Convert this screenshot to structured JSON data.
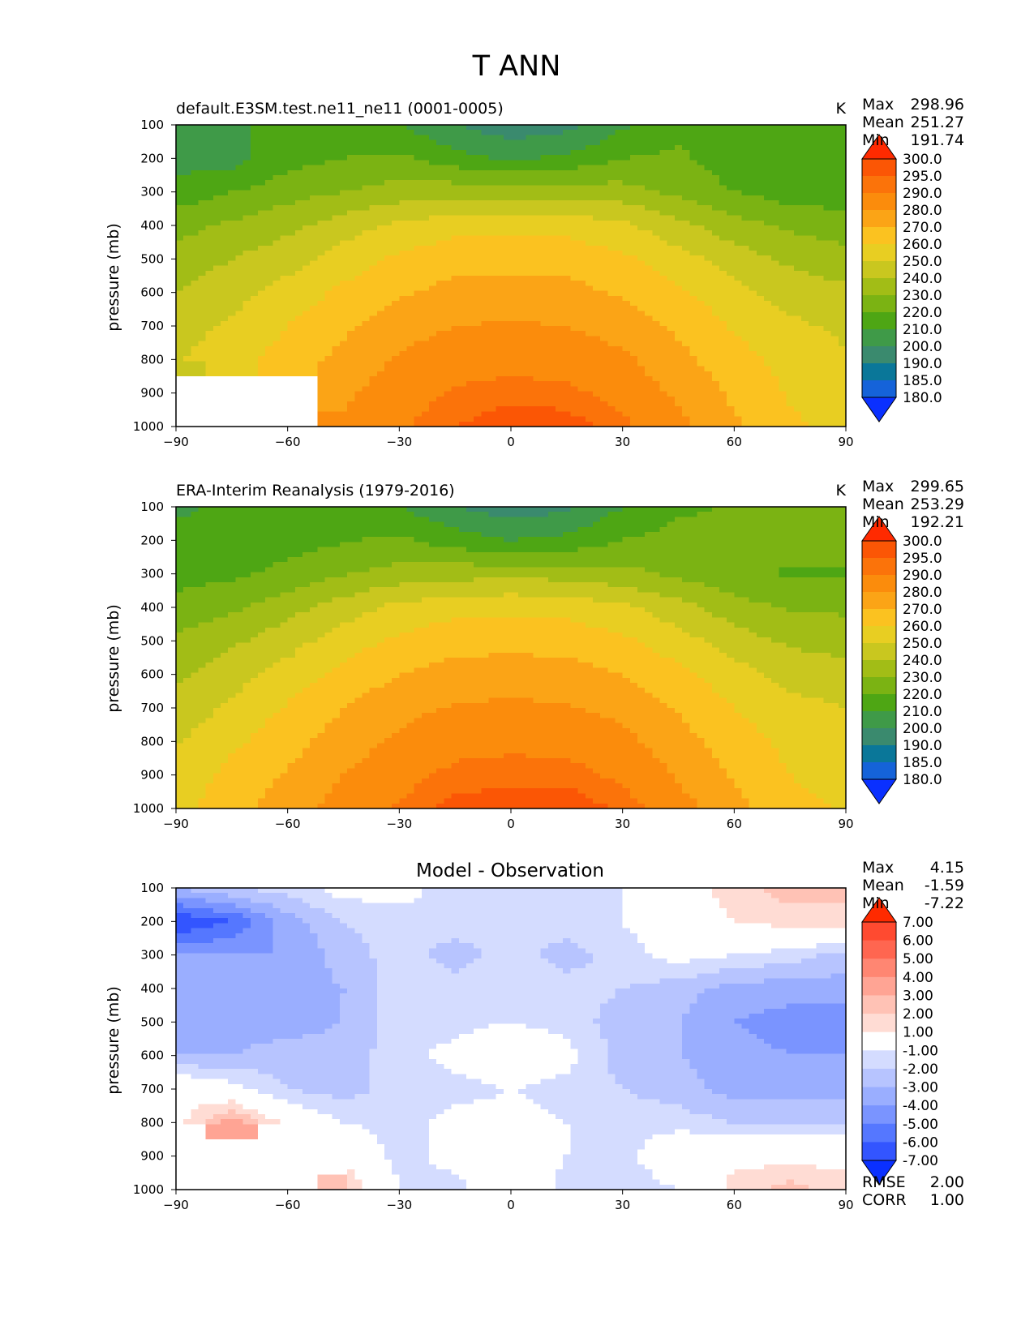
{
  "figure": {
    "title": "T ANN"
  },
  "colors": {
    "abs_levels": [
      "#0a30ff",
      "#1563d9",
      "#0a7799",
      "#3a8a6e",
      "#3f9a48",
      "#4ea614",
      "#7bb313",
      "#a2bd16",
      "#c9c71f",
      "#e8ce22",
      "#fbc220",
      "#fba416",
      "#fb8c0c",
      "#fb730a",
      "#fb5605",
      "#ff2a00"
    ],
    "diff_levels": [
      "#0a30ff",
      "#3355ff",
      "#5577ff",
      "#7a94ff",
      "#9aaeff",
      "#b7c4ff",
      "#d4dcff",
      "#ffffff",
      "#ffdcd4",
      "#ffc2b5",
      "#ffa494",
      "#ff8672",
      "#ff6650",
      "#ff4a30",
      "#ff2a00"
    ],
    "missing": "#ffffff"
  },
  "chart_data": [
    {
      "type": "heatmap",
      "id": "test",
      "title": "default.E3SM.test.ne11_ne11 (0001-0005)",
      "units": "K",
      "xlabel": "",
      "ylabel": "pressure (mb)",
      "xlim": [
        -90,
        90
      ],
      "ylim": [
        1000,
        100
      ],
      "xticks": [
        -90,
        -60,
        -30,
        0,
        30,
        60,
        90
      ],
      "xtick_labels": [
        "−90",
        "−60",
        "−30",
        "0",
        "30",
        "60",
        "90"
      ],
      "yticks": [
        100,
        200,
        300,
        400,
        500,
        600,
        700,
        800,
        900,
        1000
      ],
      "stats": [
        {
          "label": "Max",
          "value": "298.96"
        },
        {
          "label": "Mean",
          "value": "251.27"
        },
        {
          "label": "Min",
          "value": "191.74"
        }
      ],
      "colorbar": {
        "levels": [
          180.0,
          185.0,
          190.0,
          200.0,
          210.0,
          220.0,
          230.0,
          240.0,
          250.0,
          260.0,
          270.0,
          280.0,
          290.0,
          295.0,
          300.0
        ],
        "labels": [
          "180.0",
          "185.0",
          "190.0",
          "200.0",
          "210.0",
          "220.0",
          "230.0",
          "240.0",
          "250.0",
          "260.0",
          "270.0",
          "280.0",
          "290.0",
          "295.0",
          "300.0"
        ]
      },
      "field": {
        "lat": [
          -90,
          -75,
          -60,
          -45,
          -30,
          -15,
          0,
          15,
          30,
          45,
          60,
          75,
          90
        ],
        "plev": [
          100,
          200,
          300,
          400,
          500,
          600,
          700,
          800,
          900,
          1000
        ],
        "values": [
          [
            206,
            208,
            214,
            218,
            210,
            200,
            194,
            197,
            208,
            216,
            218,
            218,
            217
          ],
          [
            206,
            206,
            216,
            220,
            222,
            214,
            208,
            212,
            220,
            222,
            214,
            213,
            213
          ],
          [
            214,
            220,
            226,
            230,
            234,
            236,
            236,
            236,
            234,
            228,
            220,
            215,
            215
          ],
          [
            226,
            232,
            237,
            245,
            252,
            257,
            258,
            257,
            252,
            243,
            234,
            228,
            224
          ],
          [
            234,
            240,
            246,
            255,
            262,
            266,
            267,
            266,
            262,
            254,
            245,
            238,
            234
          ],
          [
            240,
            246,
            254,
            262,
            269,
            273,
            274,
            273,
            269,
            262,
            253,
            246,
            242
          ],
          [
            245,
            252,
            260,
            268,
            276,
            280,
            281,
            280,
            276,
            268,
            259,
            252,
            248
          ],
          [
            249,
            257,
            264,
            273,
            281,
            286,
            287,
            286,
            282,
            273,
            264,
            256,
            251
          ],
          [
            null,
            null,
            null,
            278,
            286,
            291,
            293,
            292,
            287,
            278,
            268,
            259,
            254
          ],
          [
            null,
            null,
            null,
            282,
            289,
            295,
            298.5,
            298,
            292,
            283,
            272,
            262,
            257
          ]
        ]
      }
    },
    {
      "type": "heatmap",
      "id": "ref",
      "title": "ERA-Interim Reanalysis (1979-2016)",
      "units": "K",
      "xlabel": "",
      "ylabel": "pressure (mb)",
      "xlim": [
        -90,
        90
      ],
      "ylim": [
        1000,
        100
      ],
      "xticks": [
        -90,
        -60,
        -30,
        0,
        30,
        60,
        90
      ],
      "xtick_labels": [
        "−90",
        "−60",
        "−30",
        "0",
        "30",
        "60",
        "90"
      ],
      "yticks": [
        100,
        200,
        300,
        400,
        500,
        600,
        700,
        800,
        900,
        1000
      ],
      "stats": [
        {
          "label": "Max",
          "value": "299.65"
        },
        {
          "label": "Mean",
          "value": "253.29"
        },
        {
          "label": "Min",
          "value": "192.21"
        }
      ],
      "colorbar": {
        "levels": [
          180.0,
          185.0,
          190.0,
          200.0,
          210.0,
          220.0,
          230.0,
          240.0,
          250.0,
          260.0,
          270.0,
          280.0,
          290.0,
          295.0,
          300.0
        ],
        "labels": [
          "180.0",
          "185.0",
          "190.0",
          "200.0",
          "210.0",
          "220.0",
          "230.0",
          "240.0",
          "250.0",
          "260.0",
          "270.0",
          "280.0",
          "290.0",
          "295.0",
          "300.0"
        ]
      },
      "field": {
        "lat": [
          -90,
          -75,
          -60,
          -45,
          -30,
          -15,
          0,
          15,
          30,
          45,
          60,
          75,
          90
        ],
        "plev": [
          100,
          200,
          300,
          400,
          500,
          600,
          700,
          800,
          900,
          1000
        ],
        "values": [
          [
            208,
            212,
            216,
            217,
            210,
            200,
            194,
            198,
            210,
            218,
            221,
            224,
            224
          ],
          [
            214,
            214,
            216,
            219,
            222,
            215,
            210,
            213,
            220,
            224,
            221,
            223,
            223
          ],
          [
            216,
            218,
            223,
            229,
            234,
            236,
            237,
            236,
            233,
            228,
            222,
            219,
            219
          ],
          [
            224,
            228,
            236,
            245,
            253,
            257,
            258,
            257,
            252,
            244,
            234,
            229,
            228
          ],
          [
            232,
            238,
            246,
            255,
            262,
            266,
            267,
            266,
            262,
            254,
            245,
            238,
            236
          ],
          [
            238,
            246,
            254,
            263,
            270,
            274,
            275,
            274,
            270,
            263,
            254,
            247,
            244
          ],
          [
            243,
            252,
            261,
            270,
            277,
            281,
            282,
            281,
            277,
            269,
            260,
            253,
            250
          ],
          [
            249,
            258,
            266,
            275,
            282,
            287,
            288,
            287,
            283,
            274,
            265,
            257,
            253
          ],
          [
            253,
            263,
            271,
            280,
            287,
            292,
            293,
            293,
            288,
            279,
            269,
            260,
            256
          ],
          [
            256,
            267,
            275,
            284,
            291,
            297,
            299,
            299,
            294,
            284,
            273,
            263,
            259
          ]
        ]
      }
    },
    {
      "type": "heatmap",
      "id": "diff",
      "title": "Model - Observation",
      "units": "",
      "xlabel": "",
      "ylabel": "pressure (mb)",
      "xlim": [
        -90,
        90
      ],
      "ylim": [
        1000,
        100
      ],
      "xticks": [
        -90,
        -60,
        -30,
        0,
        30,
        60,
        90
      ],
      "xtick_labels": [
        "−90",
        "−60",
        "−30",
        "0",
        "30",
        "60",
        "90"
      ],
      "yticks": [
        100,
        200,
        300,
        400,
        500,
        600,
        700,
        800,
        900,
        1000
      ],
      "stats": [
        {
          "label": "Max",
          "value": "4.15"
        },
        {
          "label": "Mean",
          "value": "-1.59"
        },
        {
          "label": "Min",
          "value": "-7.22"
        }
      ],
      "extra_stats": [
        {
          "label": "RMSE",
          "value": "2.00"
        },
        {
          "label": "CORR",
          "value": "1.00"
        }
      ],
      "colorbar": {
        "levels": [
          -7.0,
          -6.0,
          -5.0,
          -4.0,
          -3.0,
          -2.0,
          -1.0,
          1.0,
          2.0,
          3.0,
          4.0,
          5.0,
          6.0,
          7.0
        ],
        "labels": [
          "-7.00",
          "-6.00",
          "-5.00",
          "-4.00",
          "-3.00",
          "-2.00",
          "-1.00",
          "1.00",
          "2.00",
          "3.00",
          "4.00",
          "5.00",
          "6.00",
          "7.00"
        ]
      },
      "field": {
        "lat": [
          -90,
          -75,
          -60,
          -45,
          -30,
          -15,
          0,
          15,
          30,
          45,
          60,
          75,
          90
        ],
        "plev": [
          100,
          200,
          300,
          400,
          500,
          600,
          700,
          800,
          900,
          1000
        ],
        "values": [
          [
            -3.0,
            -2.0,
            -1.5,
            -0.5,
            -0.5,
            -1.5,
            -1.5,
            -1.5,
            -1.0,
            0.5,
            1.5,
            2.5,
            2.5
          ],
          [
            -7.0,
            -6.0,
            -3.5,
            -2.0,
            -1.5,
            -1.5,
            -1.5,
            -1.5,
            -1.0,
            0.0,
            1.0,
            1.5,
            1.5
          ],
          [
            -4.0,
            -4.0,
            -4.0,
            -2.5,
            -1.5,
            -2.5,
            -1.5,
            -2.5,
            -1.5,
            -0.5,
            -1.0,
            -1.5,
            -2.5
          ],
          [
            -3.5,
            -3.5,
            -3.5,
            -3.0,
            -1.5,
            -1.5,
            -1.5,
            -1.5,
            -2.0,
            -2.5,
            -3.5,
            -3.5,
            -3.5
          ],
          [
            -3.5,
            -3.5,
            -3.5,
            -3.0,
            -1.5,
            -1.5,
            -1.0,
            -1.5,
            -2.5,
            -3.0,
            -4.0,
            -4.5,
            -4.5
          ],
          [
            -3.0,
            -3.0,
            -2.5,
            -2.5,
            -1.5,
            -0.5,
            0.5,
            -0.5,
            -2.5,
            -3.0,
            -3.5,
            -4.0,
            -4.0
          ],
          [
            0.5,
            -0.5,
            -2.0,
            -2.5,
            -1.5,
            -1.5,
            -1.0,
            -1.5,
            -2.0,
            -2.5,
            -3.5,
            -3.5,
            -3.5
          ],
          [
            0.5,
            3.5,
            0.5,
            -1.0,
            -1.5,
            -0.5,
            -0.5,
            -1.0,
            -1.5,
            -1.5,
            -2.0,
            -2.0,
            -2.0
          ],
          [
            null,
            null,
            null,
            0.5,
            -1.5,
            -0.5,
            0.5,
            -1.0,
            -1.5,
            0.5,
            0.5,
            0.5,
            0.5
          ],
          [
            null,
            null,
            null,
            2.5,
            -1.0,
            -1.5,
            0.5,
            -1.5,
            -2.0,
            -1.0,
            1.5,
            2.5,
            1.5
          ]
        ]
      }
    }
  ]
}
